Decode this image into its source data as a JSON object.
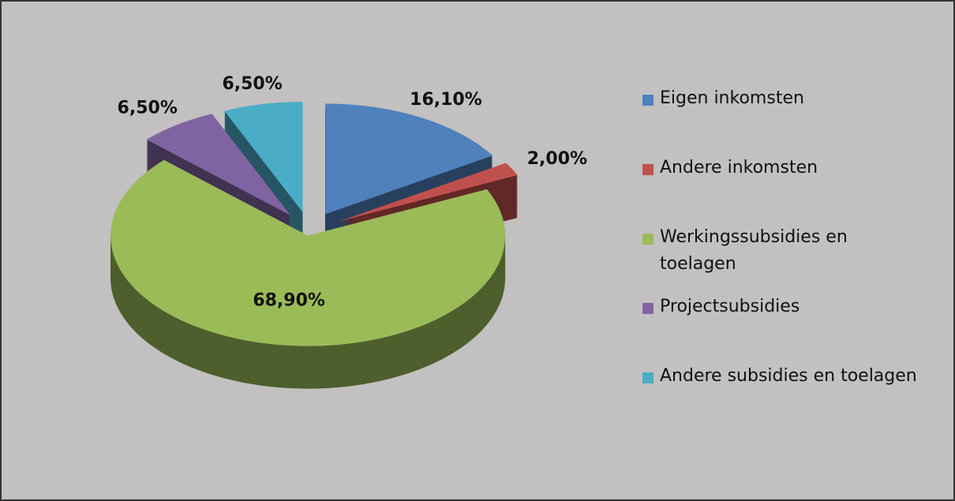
{
  "chart_data": {
    "type": "pie",
    "categories": [
      "Eigen inkomsten",
      "Andere inkomsten",
      "Werkingssubsidies en toelagen",
      "Projectsubsidies",
      "Andere subsidies en toelagen"
    ],
    "values": [
      16.1,
      2.0,
      68.9,
      6.5,
      6.5
    ],
    "value_labels": [
      "16,10%",
      "2,00%",
      "68,90%",
      "6,50%",
      "6,50%"
    ],
    "colors": [
      "#4f81bd",
      "#c0504d",
      "#9bbb59",
      "#8064a2",
      "#4bacc6"
    ],
    "legend": "right"
  }
}
